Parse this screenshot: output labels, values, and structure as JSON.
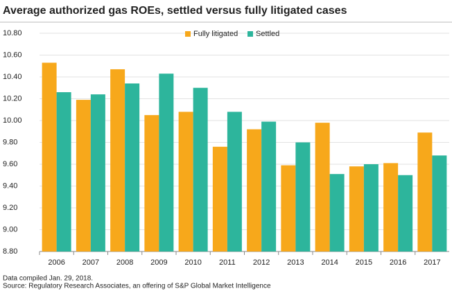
{
  "chart_data": {
    "type": "bar",
    "title": "Average authorized gas ROEs, settled versus fully litigated cases",
    "categories": [
      "2006",
      "2007",
      "2008",
      "2009",
      "2010",
      "2011",
      "2012",
      "2013",
      "2014",
      "2015",
      "2016",
      "2017"
    ],
    "series": [
      {
        "name": "Fully litigated",
        "color": "#f7a81b",
        "values": [
          10.53,
          10.19,
          10.47,
          10.05,
          10.08,
          9.76,
          9.92,
          9.59,
          9.98,
          9.58,
          9.61,
          9.89
        ]
      },
      {
        "name": "Settled",
        "color": "#2db59c",
        "values": [
          10.26,
          10.24,
          10.34,
          10.43,
          10.3,
          10.08,
          9.99,
          9.8,
          9.51,
          9.6,
          9.5,
          9.68
        ]
      }
    ],
    "ylim": [
      8.8,
      10.8
    ],
    "yticks": [
      {
        "value": 8.8,
        "label": "8.80"
      },
      {
        "value": 9.0,
        "label": "9.00"
      },
      {
        "value": 9.2,
        "label": "9.20"
      },
      {
        "value": 9.4,
        "label": "9.40"
      },
      {
        "value": 9.6,
        "label": "9.60"
      },
      {
        "value": 9.8,
        "label": "9.80"
      },
      {
        "value": 10.0,
        "label": "10.00"
      },
      {
        "value": 10.2,
        "label": "10.20"
      },
      {
        "value": 10.4,
        "label": "10.40"
      },
      {
        "value": 10.6,
        "label": "10.60"
      },
      {
        "value": 10.8,
        "label": "10.80"
      }
    ],
    "grid": true,
    "legend": "top",
    "notes": [
      "Data compiled Jan. 29, 2018.",
      "Source: Regulatory Research Associates, an offering of S&P Global Market Intelligence"
    ]
  }
}
